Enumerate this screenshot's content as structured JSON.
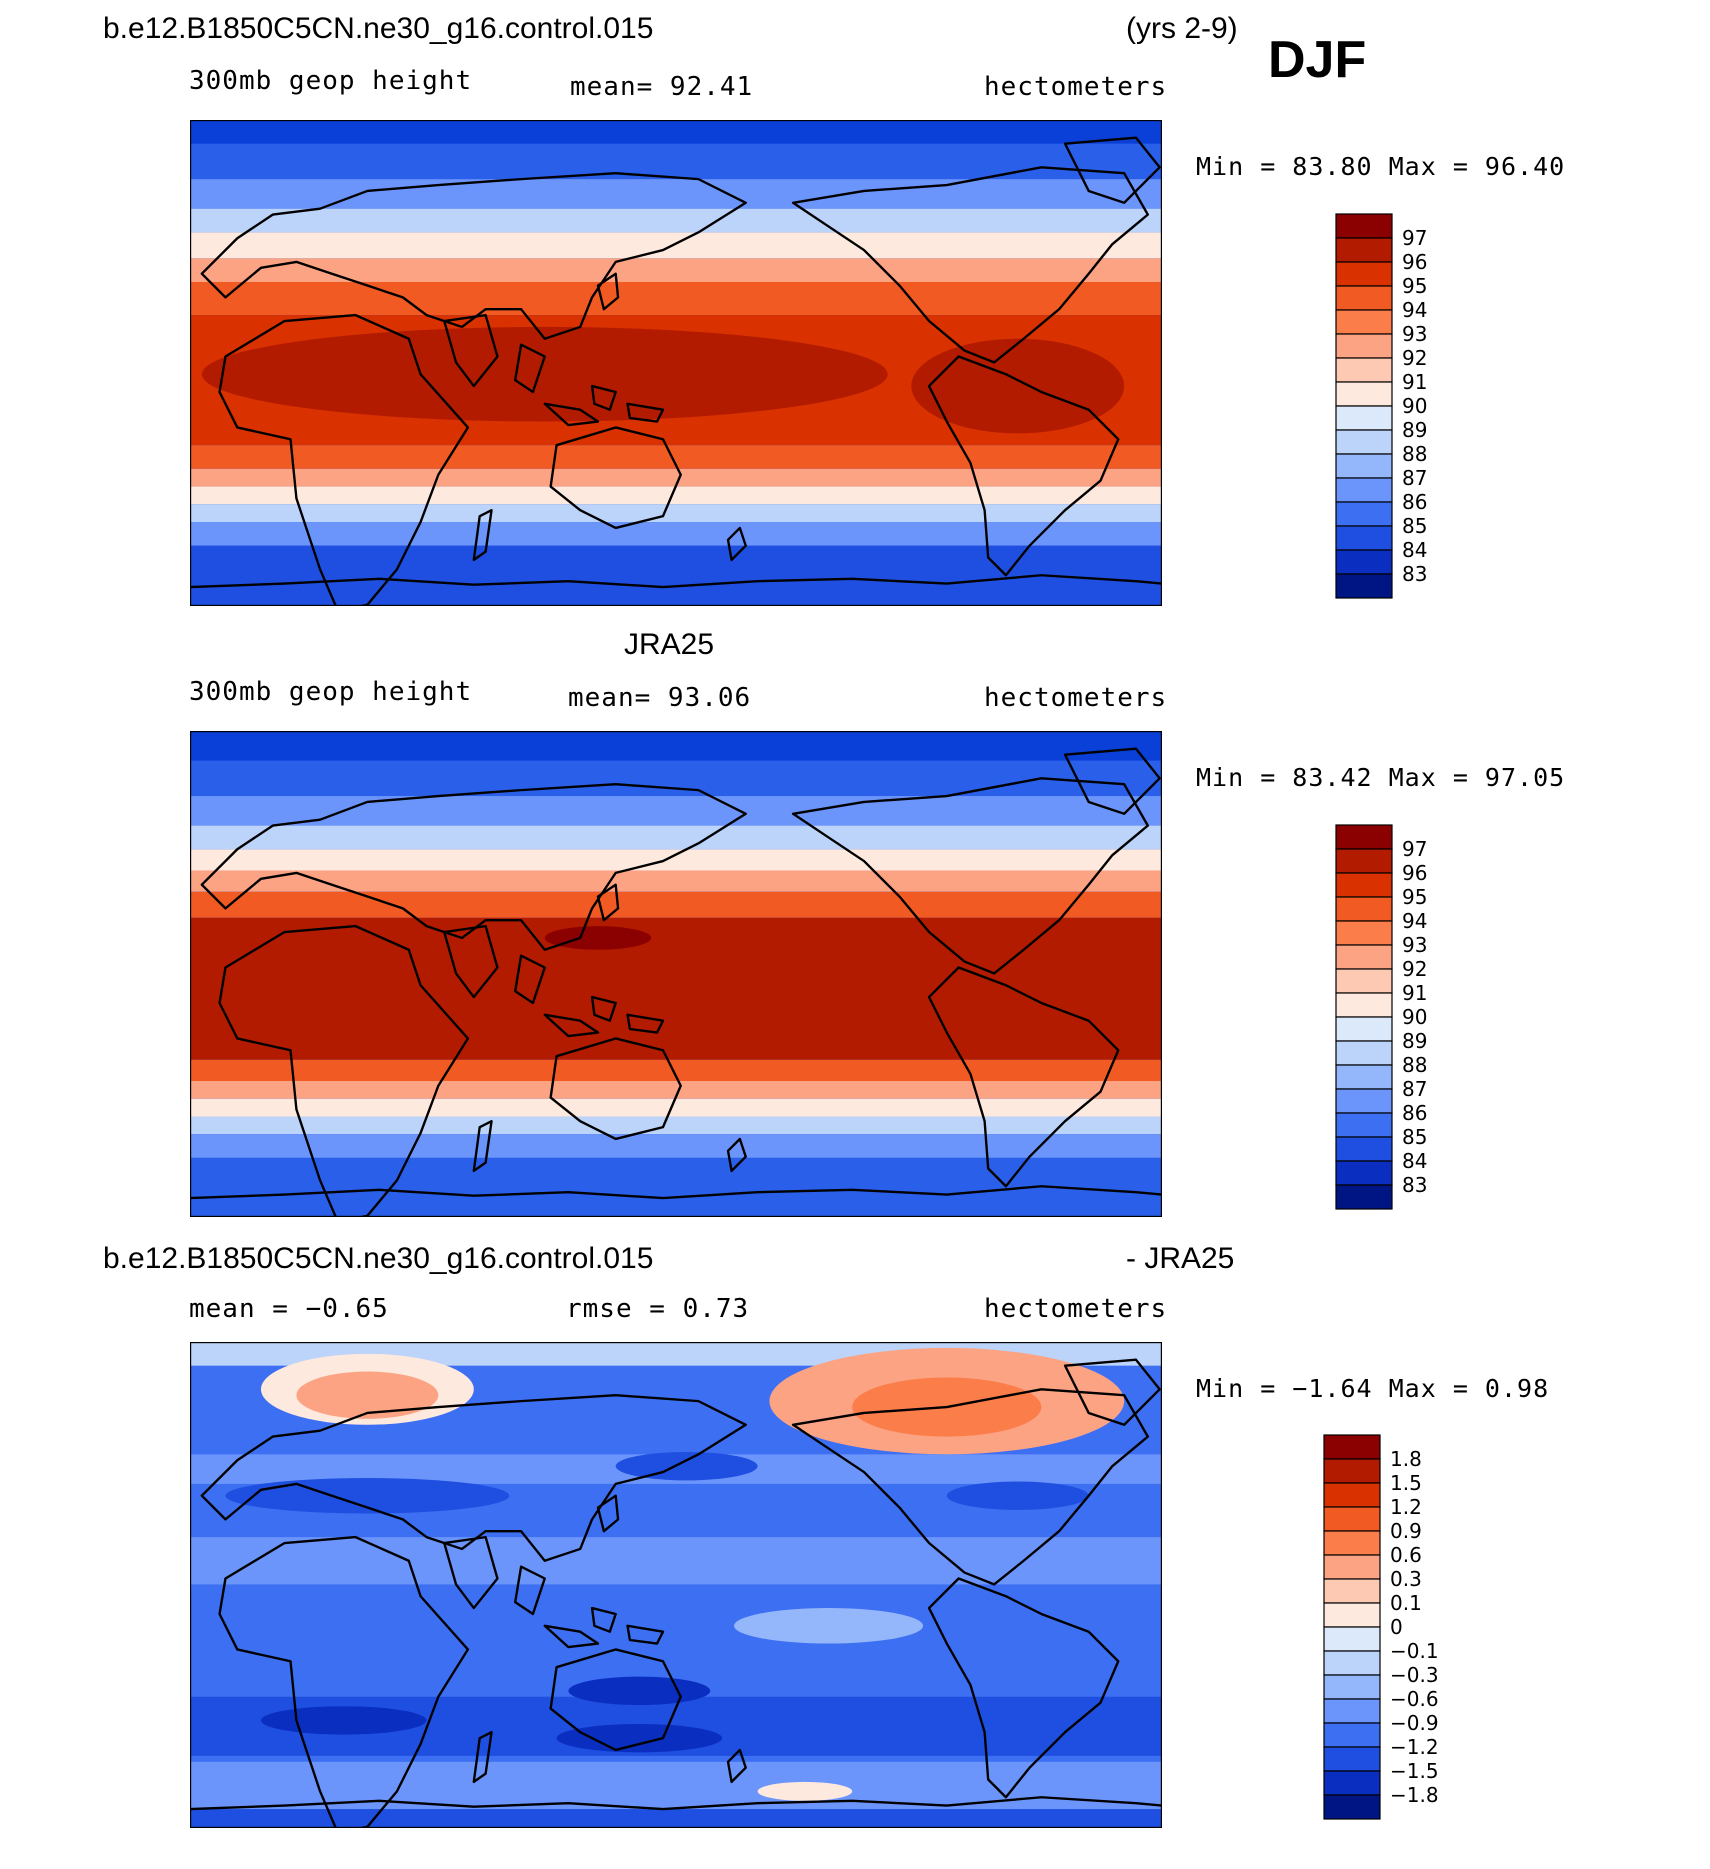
{
  "header": {
    "case_name": "b.e12.B1850C5CN.ne30_g16.control.015",
    "years": "(yrs 2-9)",
    "season": "DJF"
  },
  "panels": [
    {
      "title": "",
      "variable": "300mb geop height",
      "mean_text": "mean=  92.41",
      "units": "hectometers",
      "minmax_text": "Min =   83.80 Max =   96.40",
      "colorbar_labels": [
        "97",
        "96",
        "95",
        "94",
        "93",
        "92",
        "91",
        "90",
        "89",
        "88",
        "87",
        "86",
        "85",
        "84",
        "83"
      ],
      "colorbar_colors": [
        "#8b0000",
        "#b31b00",
        "#d93100",
        "#f25a23",
        "#fb7d4a",
        "#fca384",
        "#fdc9b3",
        "#fde9de",
        "#dce9fb",
        "#bcd3fa",
        "#94b6fb",
        "#6b95fa",
        "#3d6ff2",
        "#1e4fe0",
        "#0a2fc0",
        "#001584"
      ]
    },
    {
      "title": "JRA25",
      "variable": "300mb geop height",
      "mean_text": "mean=  93.06",
      "units": "hectometers",
      "minmax_text": "Min =   83.42 Max =   97.05",
      "colorbar_labels": [
        "97",
        "96",
        "95",
        "94",
        "93",
        "92",
        "91",
        "90",
        "89",
        "88",
        "87",
        "86",
        "85",
        "84",
        "83"
      ],
      "colorbar_colors": [
        "#8b0000",
        "#b31b00",
        "#d93100",
        "#f25a23",
        "#fb7d4a",
        "#fca384",
        "#fdc9b3",
        "#fde9de",
        "#dce9fb",
        "#bcd3fa",
        "#94b6fb",
        "#6b95fa",
        "#3d6ff2",
        "#1e4fe0",
        "#0a2fc0",
        "#001584"
      ]
    },
    {
      "title_left": "b.e12.B1850C5CN.ne30_g16.control.015",
      "title_right": "- JRA25",
      "mean_text": "mean =  −0.65",
      "rmse_text": "rmse =   0.73",
      "units": "hectometers",
      "minmax_text": "Min =  −1.64 Max =    0.98",
      "colorbar_labels": [
        "1.8",
        "1.5",
        "1.2",
        "0.9",
        "0.6",
        "0.3",
        "0.1",
        "0",
        "−0.1",
        "−0.3",
        "−0.6",
        "−0.9",
        "−1.2",
        "−1.5",
        "−1.8"
      ],
      "colorbar_colors": [
        "#8b0000",
        "#b31b00",
        "#d93100",
        "#f25a23",
        "#fb7d4a",
        "#fca384",
        "#fdc9b3",
        "#fde9de",
        "#dce9fb",
        "#bcd3fa",
        "#94b6fb",
        "#6b95fa",
        "#3d6ff2",
        "#1e4fe0",
        "#0a2fc0",
        "#001584"
      ]
    }
  ]
}
